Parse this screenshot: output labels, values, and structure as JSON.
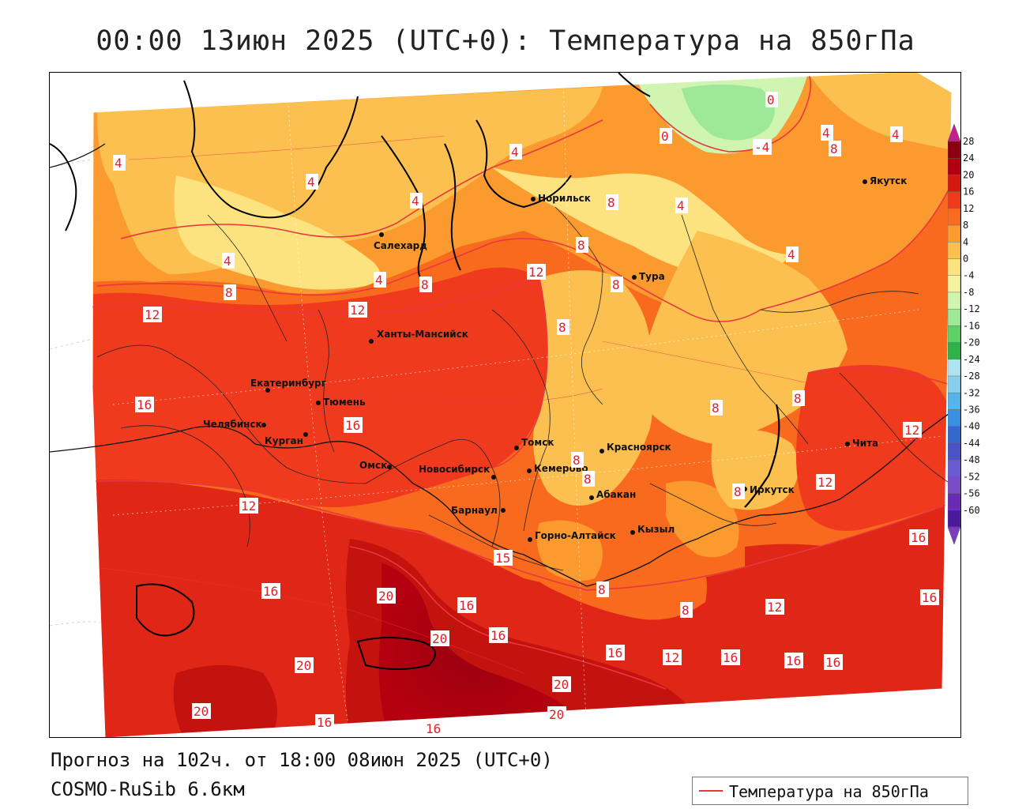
{
  "title": "00:00 13июн 2025 (UTC+0): Температура на 850гПа",
  "footer": {
    "forecast": "Прогноз на 102ч. от 18:00 08июн 2025 (UTC+0)",
    "model": "COSMO-RuSib 6.6км"
  },
  "legend": {
    "label": "Температура на 850гПа",
    "line_color": "#e8383f"
  },
  "colorbar": {
    "ticks": [
      "28",
      "24",
      "20",
      "16",
      "12",
      "8",
      "4",
      "0",
      "-4",
      "-8",
      "-12",
      "-16",
      "-20",
      "-24",
      "-28",
      "-32",
      "-36",
      "-40",
      "-44",
      "-48",
      "-52",
      "-56",
      "-60"
    ],
    "colors": [
      "#8b0010",
      "#b00010",
      "#d41a10",
      "#f03a1e",
      "#f86a1e",
      "#fb9a2e",
      "#fcc050",
      "#fde280",
      "#f6f3a0",
      "#cff5b0",
      "#9ee89a",
      "#5fd065",
      "#2fb24a",
      "#aee4f2",
      "#86d0ee",
      "#55b4ea",
      "#3a90e0",
      "#3468cc",
      "#4a52c8",
      "#6a5ad0",
      "#7a4cc6",
      "#6a2ab4",
      "#4a1a9a"
    ],
    "top_arrow_color": "#c02090",
    "bottom_arrow_color": "#7a3cc0"
  },
  "cities": [
    {
      "name": "Норильск"
    },
    {
      "name": "Якутск"
    },
    {
      "name": "Салехард"
    },
    {
      "name": "Тура"
    },
    {
      "name": "Ханты-Мансийск"
    },
    {
      "name": "Екатеринбург"
    },
    {
      "name": "Тюмень"
    },
    {
      "name": "Челябинск"
    },
    {
      "name": "Курган"
    },
    {
      "name": "Омск"
    },
    {
      "name": "Новосибирск"
    },
    {
      "name": "Томск"
    },
    {
      "name": "Кемерово"
    },
    {
      "name": "Красноярск"
    },
    {
      "name": "Барнаул"
    },
    {
      "name": "Абакан"
    },
    {
      "name": "Горно-Алтайск"
    },
    {
      "name": "Кызыл"
    },
    {
      "name": "Иркутск"
    },
    {
      "name": "Чита"
    }
  ],
  "contour_labels": [
    "0",
    "0",
    "4",
    "4",
    "8",
    "-4",
    "4",
    "4",
    "4",
    "4",
    "4",
    "4",
    "8",
    "4",
    "12",
    "8",
    "12",
    "8",
    "8",
    "8",
    "12",
    "8",
    "16",
    "16",
    "8",
    "8",
    "12",
    "12",
    "16",
    "16",
    "15",
    "8",
    "8",
    "8",
    "8",
    "12",
    "16",
    "16",
    "20",
    "16",
    "20",
    "16",
    "16",
    "12",
    "16",
    "16",
    "16",
    "20",
    "20",
    "20",
    "16",
    "20",
    "16",
    "8",
    "4",
    "12"
  ]
}
